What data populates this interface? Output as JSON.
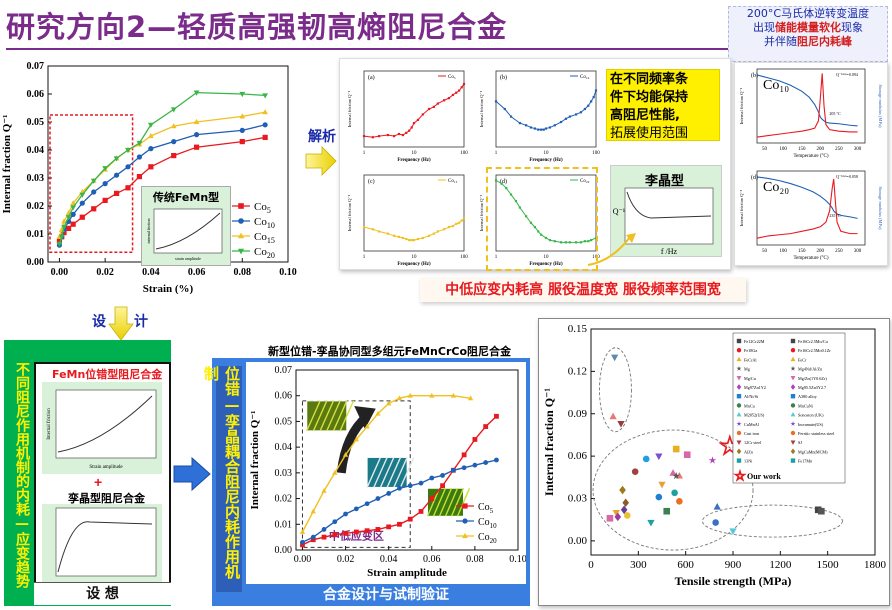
{
  "header": {
    "title": "研究方向2—轻质高强韧高熵阻尼合金",
    "note_line1": "200°C马氏体逆转变温度",
    "note_line2_pre": "出现",
    "note_line2_em": "储能模量软化",
    "note_line2_post": "现象",
    "note_line3_pre": "并伴随",
    "note_line3_em": "阻尼内耗峰"
  },
  "labels": {
    "analysis": "解析",
    "design": "设",
    "design2": "计",
    "freq_claim_line1": "在不同频率条",
    "freq_claim_line2": "件下均能保持",
    "freq_claim_line3": "高阻尼性能,",
    "freq_claim_line4": "拓展使用范围",
    "lijing_type": "李晶型",
    "lijing_xaxis": "f /Hz",
    "lijing_yaxis": "Q⁻¹",
    "summary_banner": "中低应变内耗高 服役温度宽 服役频率范围宽",
    "mech_title": "不同阻尼作用机制的内耗—应变趋势",
    "fe_title": "FeMn位错型阻尼合金",
    "twin_title": "孪晶型阻尼合金",
    "strain_amp_small": "Strain amplitude",
    "internal_friction_small": "Internal friction",
    "hypothesis": "设 想",
    "new_alloy_title": "新型位错-孪晶协同型多组元FeMnCrCo阻尼合金",
    "synergy_text": "位错—孪晶耦合阻尼内耗作用机制",
    "mid_low_strain": "中低应变区",
    "verify": "合金设计与试制验证",
    "our_work": "Our work",
    "inset_title": "传统FeMn型",
    "inset_x": "strain amplitude",
    "inset_y": "internal friction"
  },
  "chart_data": [
    {
      "id": "strain_main",
      "type": "line",
      "xlabel": "Strain (%)",
      "ylabel": "Internal fraction Q⁻¹",
      "xlim": [
        -0.005,
        0.1
      ],
      "ylim": [
        0,
        0.07
      ],
      "xticks": [
        "0.00",
        "0.02",
        "0.04",
        "0.06",
        "0.08",
        "0.10"
      ],
      "yticks": [
        "0.00",
        "0.01",
        "0.02",
        "0.03",
        "0.04",
        "0.05",
        "0.06",
        "0.07"
      ],
      "series": [
        {
          "name": "Co5",
          "color": "#e8191f",
          "marker": "square",
          "x": [
            0.0,
            0.001,
            0.002,
            0.004,
            0.006,
            0.01,
            0.015,
            0.02,
            0.025,
            0.03,
            0.035,
            0.04,
            0.05,
            0.06,
            0.08,
            0.09
          ],
          "y": [
            0.0075,
            0.009,
            0.0105,
            0.012,
            0.0135,
            0.016,
            0.019,
            0.022,
            0.0245,
            0.0265,
            0.0305,
            0.034,
            0.038,
            0.041,
            0.043,
            0.0445
          ]
        },
        {
          "name": "Co10",
          "color": "#1f5fb4",
          "marker": "circle",
          "x": [
            0.0,
            0.001,
            0.002,
            0.004,
            0.006,
            0.01,
            0.015,
            0.02,
            0.025,
            0.03,
            0.035,
            0.04,
            0.05,
            0.06,
            0.08,
            0.09
          ],
          "y": [
            0.006,
            0.009,
            0.0115,
            0.0145,
            0.017,
            0.021,
            0.025,
            0.028,
            0.031,
            0.034,
            0.0375,
            0.0405,
            0.043,
            0.0455,
            0.047,
            0.049
          ]
        },
        {
          "name": "Co15",
          "color": "#f0c020",
          "marker": "triangle-up",
          "x": [
            0.0,
            0.001,
            0.002,
            0.004,
            0.006,
            0.01,
            0.015,
            0.02,
            0.025,
            0.03,
            0.035,
            0.04,
            0.05,
            0.06,
            0.08,
            0.09
          ],
          "y": [
            0.009,
            0.0115,
            0.0145,
            0.0175,
            0.021,
            0.025,
            0.029,
            0.033,
            0.037,
            0.04,
            0.042,
            0.045,
            0.0485,
            0.05,
            0.052,
            0.0535
          ]
        },
        {
          "name": "Co20",
          "color": "#39b54a",
          "marker": "triangle-down",
          "x": [
            0.0,
            0.001,
            0.002,
            0.004,
            0.006,
            0.01,
            0.015,
            0.02,
            0.025,
            0.03,
            0.035,
            0.04,
            0.05,
            0.06,
            0.08,
            0.09
          ],
          "y": [
            0.0065,
            0.009,
            0.0125,
            0.016,
            0.0195,
            0.024,
            0.029,
            0.0335,
            0.037,
            0.04,
            0.0425,
            0.049,
            0.0545,
            0.0605,
            0.06,
            0.0595
          ]
        }
      ]
    },
    {
      "id": "freq_a",
      "type": "line",
      "panel": "(a)",
      "legend": "Co₅",
      "color": "#e8191f",
      "xlabel": "Frequency (Hz)",
      "ylabel": "Internal friction Q⁻¹",
      "xticks": [
        "1",
        "10",
        "100"
      ],
      "x": [
        1,
        1.5,
        2,
        3,
        4,
        5,
        6,
        7,
        8,
        9,
        10,
        12,
        15,
        20,
        25,
        30,
        40,
        50,
        60,
        70,
        80,
        90,
        100
      ],
      "y": [
        0.3,
        0.29,
        0.3,
        0.31,
        0.3,
        0.32,
        0.31,
        0.33,
        0.35,
        0.38,
        0.42,
        0.45,
        0.5,
        0.55,
        0.57,
        0.6,
        0.63,
        0.65,
        0.68,
        0.7,
        0.72,
        0.75,
        0.78
      ]
    },
    {
      "id": "freq_b",
      "type": "line",
      "panel": "(b)",
      "legend": "Co₁₀",
      "color": "#1f5fb4",
      "xlabel": "Frequency (Hz)",
      "ylabel": "Internal friction Q⁻¹",
      "xticks": [
        "1",
        "10",
        "100"
      ],
      "x": [
        1,
        1.5,
        2,
        3,
        4,
        5,
        6,
        7,
        8,
        9,
        10,
        12,
        15,
        20,
        25,
        30,
        40,
        50,
        60,
        70,
        80,
        90,
        100
      ],
      "y": [
        0.62,
        0.55,
        0.48,
        0.42,
        0.4,
        0.38,
        0.37,
        0.36,
        0.36,
        0.36,
        0.37,
        0.38,
        0.4,
        0.43,
        0.46,
        0.48,
        0.5,
        0.52,
        0.55,
        0.58,
        0.62,
        0.66,
        0.72
      ]
    },
    {
      "id": "freq_c",
      "type": "line",
      "panel": "(c)",
      "legend": "Co₁₅",
      "color": "#f0c020",
      "xlabel": "Frequency (Hz)",
      "ylabel": "Internal friction Q⁻¹",
      "xticks": [
        "1",
        "10",
        "100"
      ],
      "x": [
        1,
        1.5,
        2,
        3,
        4,
        5,
        6,
        7,
        8,
        9,
        10,
        12,
        15,
        20,
        25,
        30,
        40,
        50,
        60,
        70,
        80,
        90,
        100
      ],
      "y": [
        0.42,
        0.4,
        0.38,
        0.36,
        0.34,
        0.33,
        0.32,
        0.31,
        0.3,
        0.3,
        0.3,
        0.31,
        0.32,
        0.34,
        0.36,
        0.38,
        0.4,
        0.42,
        0.43,
        0.45,
        0.46,
        0.48,
        0.5
      ]
    },
    {
      "id": "freq_d",
      "type": "line",
      "panel": "(d)",
      "legend": "Co₂₀",
      "color": "#39b54a",
      "xlabel": "Frequency (Hz)",
      "ylabel": "Internal friction Q⁻¹",
      "xticks": [
        "1",
        "10",
        "100"
      ],
      "x": [
        1,
        1.3,
        1.6,
        2,
        2.5,
        3,
        4,
        5,
        6,
        7,
        8,
        10,
        12,
        15,
        20,
        25,
        30,
        40,
        50,
        60,
        70,
        80,
        100
      ],
      "y": [
        0.85,
        0.82,
        0.78,
        0.72,
        0.66,
        0.6,
        0.52,
        0.46,
        0.42,
        0.38,
        0.35,
        0.32,
        0.3,
        0.29,
        0.28,
        0.28,
        0.28,
        0.28,
        0.28,
        0.29,
        0.29,
        0.3,
        0.32
      ]
    },
    {
      "id": "temp_b",
      "type": "line",
      "panel": "(b)",
      "label": "Co₁₀",
      "xlabel": "Temperature (°C)",
      "ylabel_left": "Internal friction Q⁻¹",
      "ylabel_right": "Storage modulus (MPa)",
      "xticks": [
        "50",
        "100",
        "150",
        "200",
        "250",
        "300"
      ],
      "peak_label": "Q⁻¹ᵐᵃˣ=0.094",
      "peak_temp_label": "205 °C",
      "series": [
        {
          "name": "Internal friction",
          "color": "#e8191f",
          "x": [
            30,
            60,
            90,
            120,
            150,
            170,
            185,
            195,
            200,
            205,
            210,
            215,
            225,
            250,
            280,
            300
          ],
          "y": [
            0.008,
            0.01,
            0.012,
            0.014,
            0.016,
            0.018,
            0.02,
            0.03,
            0.06,
            0.094,
            0.05,
            0.025,
            0.018,
            0.016,
            0.015,
            0.015
          ]
        },
        {
          "name": "Storage modulus",
          "color": "#1f5fb4",
          "x": [
            30,
            60,
            90,
            120,
            150,
            170,
            185,
            195,
            200,
            205,
            210,
            215,
            225,
            250,
            280,
            300
          ],
          "y": [
            0.92,
            0.88,
            0.84,
            0.78,
            0.7,
            0.62,
            0.52,
            0.42,
            0.35,
            0.32,
            0.3,
            0.28,
            0.27,
            0.26,
            0.24,
            0.23
          ]
        }
      ]
    },
    {
      "id": "temp_d",
      "type": "line",
      "panel": "(d)",
      "label": "Co₂₀",
      "xlabel": "Temperature (°C)",
      "ylabel_left": "Internal friction Q⁻¹",
      "ylabel_right": "Storage modulus (MPa)",
      "xticks": [
        "50",
        "100",
        "150",
        "200",
        "250",
        "300"
      ],
      "peak_label": "Q⁻¹ᵐᵃˣ=0.058",
      "peak_temp_label": "235 °C",
      "series": [
        {
          "name": "Internal friction",
          "color": "#e8191f",
          "x": [
            30,
            60,
            90,
            120,
            150,
            180,
            200,
            215,
            225,
            232,
            236,
            240,
            245,
            255,
            280,
            300
          ],
          "y": [
            0.006,
            0.008,
            0.009,
            0.01,
            0.012,
            0.014,
            0.016,
            0.02,
            0.03,
            0.05,
            0.058,
            0.04,
            0.02,
            0.012,
            0.01,
            0.01
          ]
        },
        {
          "name": "Storage modulus",
          "color": "#1f5fb4",
          "x": [
            30,
            60,
            90,
            120,
            150,
            180,
            200,
            215,
            225,
            232,
            236,
            240,
            245,
            255,
            280,
            300
          ],
          "y": [
            0.92,
            0.9,
            0.87,
            0.83,
            0.78,
            0.72,
            0.66,
            0.6,
            0.55,
            0.5,
            0.46,
            0.44,
            0.42,
            0.4,
            0.38,
            0.36
          ]
        }
      ]
    },
    {
      "id": "strain_amplitude",
      "type": "line",
      "xlabel": "Strain amplitude",
      "ylabel": "Internal fraction Q⁻¹",
      "xlim": [
        -0.003,
        0.1
      ],
      "ylim": [
        0,
        0.07
      ],
      "xticks": [
        "0.00",
        "0.02",
        "0.04",
        "0.06",
        "0.08",
        "0.10"
      ],
      "yticks": [
        "0.00",
        "0.01",
        "0.02",
        "0.03",
        "0.04",
        "0.05",
        "0.06",
        "0.07"
      ],
      "series": [
        {
          "name": "Co5",
          "color": "#e8191f",
          "marker": "square",
          "x": [
            0.0,
            0.005,
            0.01,
            0.015,
            0.02,
            0.025,
            0.03,
            0.035,
            0.04,
            0.045,
            0.05,
            0.055,
            0.06,
            0.065,
            0.07,
            0.075,
            0.08,
            0.085,
            0.09
          ],
          "y": [
            0.002,
            0.004,
            0.005,
            0.006,
            0.0065,
            0.007,
            0.0075,
            0.008,
            0.009,
            0.01,
            0.012,
            0.015,
            0.02,
            0.025,
            0.031,
            0.037,
            0.043,
            0.048,
            0.052
          ]
        },
        {
          "name": "Co10",
          "color": "#1f5fb4",
          "marker": "circle",
          "x": [
            0.0,
            0.005,
            0.01,
            0.015,
            0.02,
            0.025,
            0.03,
            0.035,
            0.04,
            0.045,
            0.05,
            0.055,
            0.06,
            0.065,
            0.07,
            0.075,
            0.08,
            0.085,
            0.09
          ],
          "y": [
            0.003,
            0.005,
            0.008,
            0.011,
            0.014,
            0.016,
            0.018,
            0.02,
            0.022,
            0.024,
            0.025,
            0.026,
            0.028,
            0.029,
            0.031,
            0.032,
            0.033,
            0.034,
            0.035
          ]
        },
        {
          "name": "Co20",
          "color": "#f0c020",
          "marker": "triangle-up",
          "x": [
            0.0,
            0.005,
            0.01,
            0.015,
            0.02,
            0.025,
            0.03,
            0.035,
            0.04,
            0.045,
            0.05,
            0.06,
            0.07,
            0.078
          ],
          "y": [
            0.007,
            0.015,
            0.023,
            0.03,
            0.037,
            0.043,
            0.048,
            0.053,
            0.057,
            0.059,
            0.06,
            0.06,
            0.06,
            0.059
          ]
        }
      ]
    },
    {
      "id": "tensile_scatter",
      "type": "scatter",
      "xlabel": "Tensile strength (MPa)",
      "ylabel": "Internal fraction Q⁻¹",
      "xlim": [
        0,
        1800
      ],
      "ylim": [
        -0.01,
        0.15
      ],
      "xticks": [
        "0",
        "300",
        "600",
        "900",
        "1200",
        "1500",
        "1800"
      ],
      "yticks": [
        "0.00",
        "0.03",
        "0.06",
        "0.09",
        "0.12",
        "0.15"
      ],
      "legend": [
        "Fe12Cr22M",
        "Fe18Ga",
        "FeCrAl",
        "Mg",
        "Mg/Cu",
        "Mg97Zn1Y2",
        "Al/Ni/Si",
        "MnCu",
        "M2052(US)",
        "CuMnAl",
        "Cast iron",
        "12Cr steel",
        "AlZn",
        "13Ni",
        "Fe16Cr2.5Mo/Cu",
        "Fe16Cr2.5Mo0.1Zr",
        "FeCr",
        "Mg4Nd/Al/Zn",
        "Mg/Zn(1Y0.6Zr)",
        "Mg95.5Zn3Y2.7",
        "A380 alloy",
        "MnCuNi",
        "Sonoston (UK)",
        "Incramute(US)",
        "Ferritic stainless steel",
        "SJ",
        "MgCuMn(MCM)",
        "Fe17Mn"
      ],
      "points": [
        {
          "x": 150,
          "y": 0.13,
          "c": "#5a8ab0",
          "m": "tri-down"
        },
        {
          "x": 140,
          "y": 0.088,
          "c": "#e87878",
          "m": "tri-up"
        },
        {
          "x": 190,
          "y": 0.083,
          "c": "#9b3b3b",
          "m": "tri-down"
        },
        {
          "x": 1440,
          "y": 0.022,
          "c": "#444",
          "m": "square"
        },
        {
          "x": 1460,
          "y": 0.021,
          "c": "#555",
          "m": "square"
        },
        {
          "x": 800,
          "y": 0.024,
          "c": "#3a6fc8",
          "m": "tri-up"
        },
        {
          "x": 900,
          "y": 0.007,
          "c": "#5ac8d8",
          "m": "tri-down"
        },
        {
          "x": 790,
          "y": 0.013,
          "c": "#3a6fc8",
          "m": "circle"
        },
        {
          "x": 430,
          "y": 0.06,
          "c": "#7a4fd6",
          "m": "tri-down"
        },
        {
          "x": 350,
          "y": 0.058,
          "c": "#1f9fdf",
          "m": "circle"
        },
        {
          "x": 520,
          "y": 0.048,
          "c": "#d868a8",
          "m": "tri-up"
        },
        {
          "x": 560,
          "y": 0.046,
          "c": "#e87878",
          "m": "tri-up"
        },
        {
          "x": 540,
          "y": 0.046,
          "c": "#555",
          "m": "star"
        },
        {
          "x": 540,
          "y": 0.065,
          "c": "#e8b020",
          "m": "square"
        },
        {
          "x": 610,
          "y": 0.061,
          "c": "#d868a8",
          "m": "square"
        },
        {
          "x": 770,
          "y": 0.057,
          "c": "#b040c0",
          "m": "star"
        },
        {
          "x": 280,
          "y": 0.049,
          "c": "#a04040",
          "m": "circle"
        },
        {
          "x": 450,
          "y": 0.04,
          "c": "#e8a030",
          "m": "tri-down"
        },
        {
          "x": 530,
          "y": 0.034,
          "c": "#1fa0a0",
          "m": "circle"
        },
        {
          "x": 560,
          "y": 0.028,
          "c": "#e87020",
          "m": "circle"
        },
        {
          "x": 430,
          "y": 0.031,
          "c": "#1f7fd0",
          "m": "circle"
        },
        {
          "x": 480,
          "y": 0.021,
          "c": "#3a8050",
          "m": "square"
        },
        {
          "x": 380,
          "y": 0.013,
          "c": "#1fa0a0",
          "m": "tri-down"
        },
        {
          "x": 200,
          "y": 0.036,
          "c": "#9b7b1b",
          "m": "diamond"
        },
        {
          "x": 220,
          "y": 0.027,
          "c": "#8a5a2a",
          "m": "diamond"
        },
        {
          "x": 210,
          "y": 0.022,
          "c": "#6a3a9a",
          "m": "diamond"
        },
        {
          "x": 160,
          "y": 0.02,
          "c": "#e8a030",
          "m": "tri-down"
        },
        {
          "x": 170,
          "y": 0.017,
          "c": "#9b3b9b",
          "m": "diamond"
        },
        {
          "x": 120,
          "y": 0.016,
          "c": "#d868a8",
          "m": "square"
        },
        {
          "x": 230,
          "y": 0.018,
          "c": "#e8c030",
          "m": "circle"
        },
        {
          "x": 880,
          "y": 0.067,
          "c": "#e8191f",
          "m": "star-open",
          "our": true
        }
      ]
    }
  ]
}
